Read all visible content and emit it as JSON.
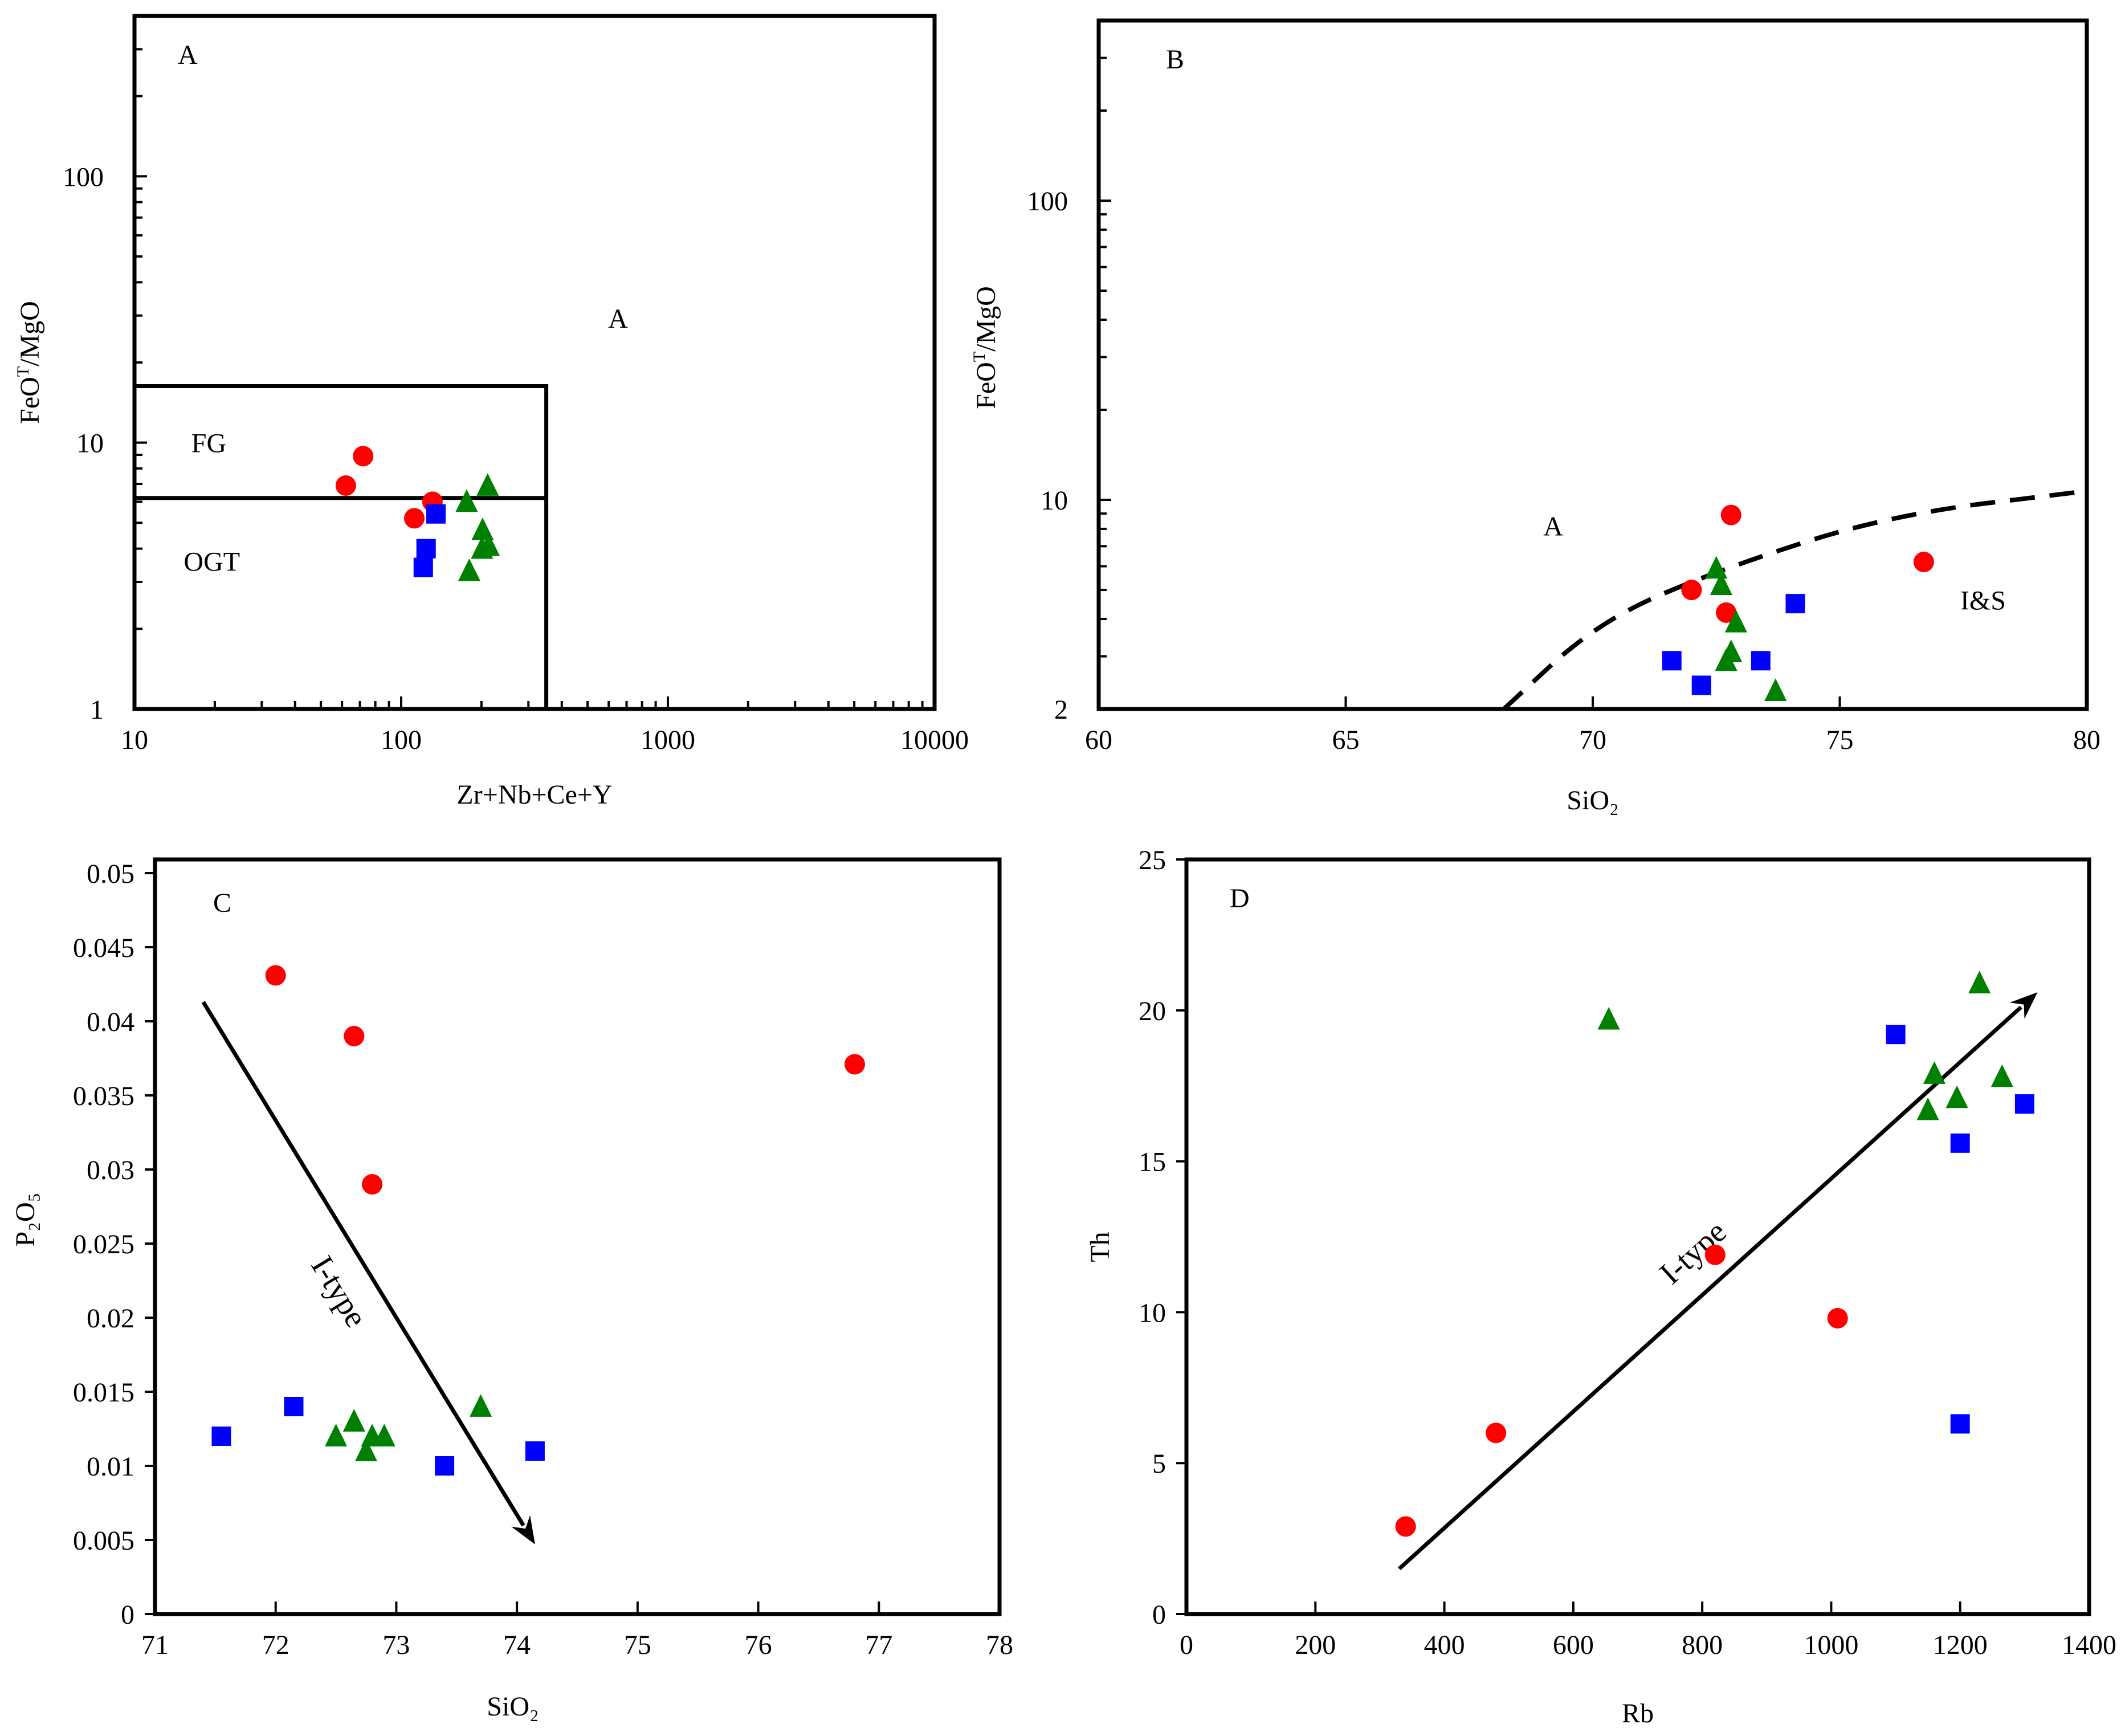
{
  "colors": {
    "series_1": "#ff0000",
    "series_2": "#0000ff",
    "series_3": "#008000",
    "axis": "#000000"
  },
  "chart_data": [
    {
      "panel": "A",
      "type": "scatter",
      "title": "A",
      "xlabel": "Zr+Nb+Ce+Y",
      "ylabel": "FeOT/MgO",
      "x_scale": "log",
      "y_scale": "log",
      "xlim": [
        10,
        10000
      ],
      "ylim": [
        1,
        400
      ],
      "x_ticks": [
        10,
        100,
        1000,
        10000
      ],
      "x_tick_labels": [
        "10",
        "100",
        "1000",
        "10000"
      ],
      "y_ticks": [
        1,
        10,
        100
      ],
      "y_tick_labels": [
        "1",
        "10",
        "100"
      ],
      "fields": [
        {
          "label": "A",
          "x": 650,
          "y": 27
        },
        {
          "label": "FG",
          "x": 19,
          "y": 9.2
        },
        {
          "label": "OGT",
          "x": 19.5,
          "y": 3.3
        }
      ],
      "field_lines": [
        [
          [
            10,
            16.3
          ],
          [
            350,
            16.3
          ],
          [
            350,
            1
          ]
        ],
        [
          [
            10,
            6.2
          ],
          [
            350,
            6.2
          ]
        ]
      ],
      "series": [
        {
          "name": "series-1",
          "marker": "circle",
          "color": "#ff0000",
          "points": [
            [
              72,
              8.9
            ],
            [
              62,
              6.9
            ],
            [
              131,
              6.0
            ],
            [
              112,
              5.2
            ]
          ]
        },
        {
          "name": "series-2",
          "marker": "square",
          "color": "#0000ff",
          "points": [
            [
              135,
              5.4
            ],
            [
              124,
              4.0
            ],
            [
              121,
              3.4
            ]
          ]
        },
        {
          "name": "series-3",
          "marker": "triangle",
          "color": "#008000",
          "points": [
            [
              211,
              6.9
            ],
            [
              176,
              6.0
            ],
            [
              202,
              4.7
            ],
            [
              213,
              4.1
            ],
            [
              201,
              4.0
            ],
            [
              180,
              3.3
            ]
          ]
        }
      ]
    },
    {
      "panel": "B",
      "type": "scatter",
      "title": "B",
      "xlabel": "SiO₂",
      "ylabel": "FeOT/MgO",
      "x_scale": "linear",
      "y_scale": "log",
      "xlim": [
        60,
        80
      ],
      "ylim": [
        2,
        400
      ],
      "x_ticks": [
        60,
        65,
        70,
        75,
        80
      ],
      "x_tick_labels": [
        "60",
        "65",
        "70",
        "75",
        "80"
      ],
      "y_ticks": [
        2,
        10,
        100
      ],
      "y_tick_labels": [
        "2",
        "10",
        "100"
      ],
      "fields": [
        {
          "label": "A",
          "x": 69.2,
          "y": 7.6
        },
        {
          "label": "I&S",
          "x": 77.9,
          "y": 4.3
        }
      ],
      "boundary": {
        "style": "dashed",
        "points": [
          [
            68.2,
            2.0
          ],
          [
            70.1,
            3.9
          ],
          [
            72.5,
            5.8
          ],
          [
            76.0,
            8.9
          ],
          [
            80,
            10.7
          ]
        ]
      },
      "series": [
        {
          "name": "series-1",
          "marker": "circle",
          "color": "#ff0000",
          "points": [
            [
              72.8,
              8.9
            ],
            [
              76.7,
              6.2
            ],
            [
              72.0,
              5.0
            ],
            [
              72.7,
              4.2
            ]
          ]
        },
        {
          "name": "series-2",
          "marker": "square",
          "color": "#0000ff",
          "points": [
            [
              74.1,
              4.5
            ],
            [
              71.6,
              2.9
            ],
            [
              73.4,
              2.9
            ],
            [
              72.2,
              2.4
            ]
          ]
        },
        {
          "name": "series-3",
          "marker": "triangle",
          "color": "#008000",
          "points": [
            [
              72.5,
              5.9
            ],
            [
              72.6,
              5.2
            ],
            [
              72.9,
              3.9
            ],
            [
              72.8,
              3.1
            ],
            [
              72.7,
              2.9
            ],
            [
              73.7,
              2.3
            ]
          ]
        }
      ]
    },
    {
      "panel": "C",
      "type": "scatter",
      "title": "C",
      "xlabel": "SiO₂",
      "ylabel": "P₂O₅",
      "x_scale": "linear",
      "y_scale": "linear",
      "xlim": [
        71,
        78
      ],
      "ylim": [
        0,
        0.05
      ],
      "x_ticks": [
        71,
        72,
        73,
        74,
        75,
        76,
        77,
        78
      ],
      "x_tick_labels": [
        "71",
        "72",
        "73",
        "74",
        "75",
        "76",
        "77",
        "78"
      ],
      "y_ticks": [
        0,
        0.005,
        0.01,
        0.015,
        0.02,
        0.025,
        0.03,
        0.035,
        0.04,
        0.045,
        0.05
      ],
      "y_tick_labels": [
        "0",
        "0.005",
        "0.01",
        "0.015",
        "0.02",
        "0.025",
        "0.03",
        "0.035",
        "0.04",
        "0.045",
        "0.05"
      ],
      "trend": {
        "label": "I-type",
        "from": [
          71.4,
          0.0413
        ],
        "to": [
          74.15,
          0.0047
        ]
      },
      "series": [
        {
          "name": "series-1",
          "marker": "circle",
          "color": "#ff0000",
          "points": [
            [
              72.0,
              0.0431
            ],
            [
              72.65,
              0.039
            ],
            [
              76.8,
              0.0371
            ],
            [
              72.8,
              0.029
            ]
          ]
        },
        {
          "name": "series-2",
          "marker": "square",
          "color": "#0000ff",
          "points": [
            [
              71.55,
              0.012
            ],
            [
              72.15,
              0.014
            ],
            [
              73.4,
              0.01
            ],
            [
              74.15,
              0.011
            ]
          ]
        },
        {
          "name": "series-3",
          "marker": "triangle",
          "color": "#008000",
          "points": [
            [
              72.5,
              0.012
            ],
            [
              72.65,
              0.013
            ],
            [
              72.75,
              0.011
            ],
            [
              72.8,
              0.012
            ],
            [
              72.9,
              0.012
            ],
            [
              73.7,
              0.014
            ]
          ]
        }
      ]
    },
    {
      "panel": "D",
      "type": "scatter",
      "title": "D",
      "xlabel": "Rb",
      "ylabel": "Th",
      "x_scale": "linear",
      "y_scale": "linear",
      "xlim": [
        0,
        1400
      ],
      "ylim": [
        0,
        25
      ],
      "x_ticks": [
        0,
        200,
        400,
        600,
        800,
        1000,
        1200,
        1400
      ],
      "x_tick_labels": [
        "0",
        "200",
        "400",
        "600",
        "800",
        "1000",
        "1200",
        "1400"
      ],
      "y_ticks": [
        0,
        5,
        10,
        15,
        20,
        25
      ],
      "y_tick_labels": [
        "0",
        "5",
        "10",
        "15",
        "20",
        "25"
      ],
      "trend": {
        "label": "I-type",
        "from": [
          330,
          1.5
        ],
        "to": [
          1320,
          20.6
        ]
      },
      "series": [
        {
          "name": "series-1",
          "marker": "circle",
          "color": "#ff0000",
          "points": [
            [
              340,
              2.9
            ],
            [
              480,
              6.0
            ],
            [
              820,
              11.9
            ],
            [
              1010,
              9.8
            ]
          ]
        },
        {
          "name": "series-2",
          "marker": "square",
          "color": "#0000ff",
          "points": [
            [
              1100,
              19.2
            ],
            [
              1300,
              16.9
            ],
            [
              1200,
              15.6
            ],
            [
              1200,
              6.3
            ]
          ]
        },
        {
          "name": "series-3",
          "marker": "triangle",
          "color": "#008000",
          "points": [
            [
              655,
              19.7
            ],
            [
              1230,
              20.9
            ],
            [
              1160,
              17.9
            ],
            [
              1195,
              17.1
            ],
            [
              1265,
              17.8
            ],
            [
              1150,
              16.7
            ]
          ]
        }
      ]
    }
  ]
}
